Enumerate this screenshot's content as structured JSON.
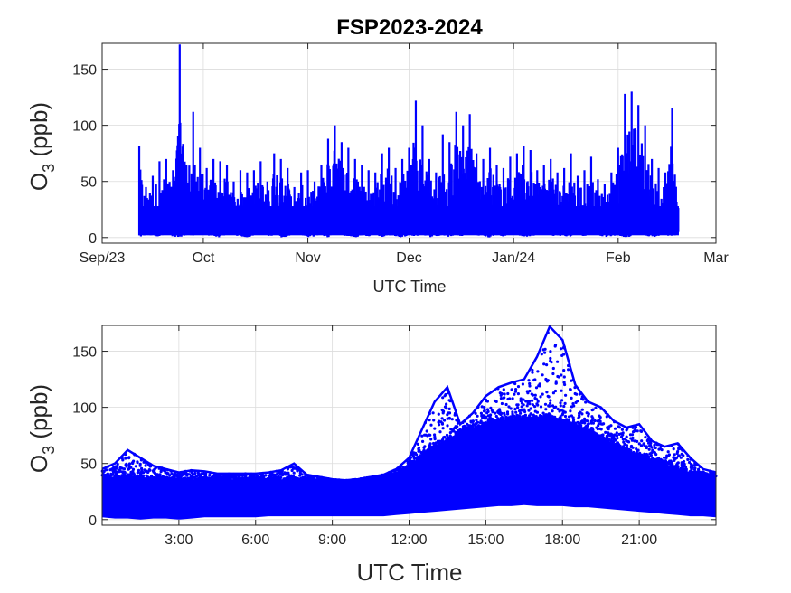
{
  "title": "FSP2023-2024",
  "colors": {
    "series": "#0000ff",
    "axis": "#262626",
    "grid": "#dcdcdc"
  },
  "chart_data": [
    {
      "type": "line",
      "title": "FSP2023-2024",
      "xlabel": "UTC Time",
      "ylabel": {
        "main": "O",
        "sub": "3",
        "unit": " (ppb)"
      },
      "x_type": "date",
      "xlim": [
        "2023-09-01",
        "2024-03-01"
      ],
      "ylim": [
        -5,
        173
      ],
      "yticks": [
        0,
        50,
        100,
        150
      ],
      "xticks": [
        {
          "label": "Sep/23",
          "value": "2023-09-01"
        },
        {
          "label": "Oct",
          "value": "2023-10-01"
        },
        {
          "label": "Nov",
          "value": "2023-11-01"
        },
        {
          "label": "Dec",
          "value": "2023-12-01"
        },
        {
          "label": "Jan/24",
          "value": "2024-01-01"
        },
        {
          "label": "Feb",
          "value": "2024-02-01"
        },
        {
          "label": "Mar",
          "value": "2024-03-01"
        }
      ],
      "grid": true,
      "series": [
        {
          "color": "#0000ff",
          "note": "daily range of ozone (min/max), approximate",
          "x": [
            "2023-09-12",
            "2023-09-14",
            "2023-09-16",
            "2023-09-18",
            "2023-09-20",
            "2023-09-22",
            "2023-09-24",
            "2023-09-26",
            "2023-09-28",
            "2023-09-30",
            "2023-10-02",
            "2023-10-04",
            "2023-10-06",
            "2023-10-08",
            "2023-10-10",
            "2023-10-12",
            "2023-10-14",
            "2023-10-16",
            "2023-10-18",
            "2023-10-20",
            "2023-10-22",
            "2023-10-24",
            "2023-10-26",
            "2023-10-28",
            "2023-10-30",
            "2023-11-01",
            "2023-11-03",
            "2023-11-05",
            "2023-11-07",
            "2023-11-09",
            "2023-11-11",
            "2023-11-13",
            "2023-11-15",
            "2023-11-17",
            "2023-11-19",
            "2023-11-21",
            "2023-11-23",
            "2023-11-25",
            "2023-11-27",
            "2023-11-29",
            "2023-12-01",
            "2023-12-03",
            "2023-12-05",
            "2023-12-07",
            "2023-12-09",
            "2023-12-11",
            "2023-12-13",
            "2023-12-15",
            "2023-12-17",
            "2023-12-19",
            "2023-12-21",
            "2023-12-23",
            "2023-12-25",
            "2023-12-27",
            "2023-12-29",
            "2023-12-31",
            "2024-01-02",
            "2024-01-04",
            "2024-01-06",
            "2024-01-08",
            "2024-01-10",
            "2024-01-12",
            "2024-01-14",
            "2024-01-16",
            "2024-01-18",
            "2024-01-20",
            "2024-01-22",
            "2024-01-24",
            "2024-01-26",
            "2024-01-28",
            "2024-01-30",
            "2024-02-01",
            "2024-02-03",
            "2024-02-05",
            "2024-02-07",
            "2024-02-09",
            "2024-02-11",
            "2024-02-13",
            "2024-02-15",
            "2024-02-17",
            "2024-02-19"
          ],
          "min": [
            0,
            2,
            1,
            0,
            3,
            1,
            0,
            2,
            1,
            4,
            2,
            1,
            0,
            3,
            2,
            1,
            0,
            2,
            3,
            1,
            2,
            0,
            1,
            3,
            2,
            0,
            1,
            2,
            0,
            3,
            2,
            1,
            0,
            2,
            1,
            3,
            0,
            2,
            1,
            0,
            2,
            1,
            3,
            0,
            1,
            2,
            0,
            2,
            1,
            3,
            2,
            1,
            0,
            2,
            1,
            3,
            2,
            0,
            1,
            2,
            3,
            1,
            2,
            0,
            1,
            2,
            1,
            3,
            2,
            0,
            1,
            2,
            0,
            1,
            3,
            2,
            0,
            1,
            2,
            1,
            3
          ],
          "max": [
            82,
            45,
            55,
            68,
            70,
            60,
            172,
            65,
            112,
            80,
            62,
            70,
            68,
            65,
            50,
            60,
            58,
            60,
            68,
            50,
            75,
            70,
            62,
            45,
            58,
            60,
            50,
            65,
            88,
            100,
            85,
            80,
            70,
            65,
            60,
            58,
            75,
            80,
            62,
            70,
            80,
            122,
            100,
            70,
            58,
            92,
            85,
            112,
            100,
            110,
            75,
            70,
            80,
            65,
            62,
            72,
            75,
            82,
            78,
            60,
            65,
            70,
            58,
            62,
            75,
            55,
            60,
            72,
            52,
            48,
            58,
            80,
            128,
            130,
            118,
            100,
            70,
            62,
            58,
            115,
            30
          ]
        }
      ]
    },
    {
      "type": "scatter",
      "xlabel": "UTC Time",
      "ylabel": {
        "main": "O",
        "sub": "3",
        "unit": " (ppb)"
      },
      "xlim": [
        0,
        24
      ],
      "ylim": [
        -5,
        173
      ],
      "yticks": [
        0,
        50,
        100,
        150
      ],
      "xticks": [
        {
          "label": "3:00",
          "value": 3
        },
        {
          "label": "6:00",
          "value": 6
        },
        {
          "label": "9:00",
          "value": 9
        },
        {
          "label": "12:00",
          "value": 12
        },
        {
          "label": "15:00",
          "value": 15
        },
        {
          "label": "18:00",
          "value": 18
        },
        {
          "label": "21:00",
          "value": 21
        }
      ],
      "grid": true,
      "series": [
        {
          "color": "#0000ff",
          "note": "diurnal envelope of ozone (lower/upper), approximate",
          "x": [
            0,
            0.5,
            1,
            1.5,
            2,
            2.5,
            3,
            3.5,
            4,
            4.5,
            5,
            5.5,
            6,
            6.5,
            7,
            7.5,
            8,
            8.5,
            9,
            9.5,
            10,
            10.5,
            11,
            11.5,
            12,
            12.5,
            13,
            13.5,
            14,
            14.5,
            15,
            15.5,
            16,
            16.5,
            17,
            17.5,
            18,
            18.5,
            19,
            19.5,
            20,
            20.5,
            21,
            21.5,
            22,
            22.5,
            23,
            23.5,
            24
          ],
          "low": [
            2,
            1,
            1,
            0,
            1,
            1,
            0,
            1,
            2,
            2,
            2,
            2,
            2,
            3,
            3,
            3,
            3,
            3,
            3,
            3,
            3,
            3,
            3,
            4,
            5,
            6,
            7,
            8,
            9,
            10,
            11,
            12,
            12,
            13,
            12,
            12,
            12,
            11,
            11,
            10,
            9,
            8,
            7,
            6,
            5,
            4,
            3,
            3,
            2
          ],
          "high": [
            45,
            50,
            62,
            55,
            48,
            45,
            42,
            44,
            43,
            41,
            41,
            41,
            41,
            42,
            44,
            50,
            40,
            38,
            36,
            35,
            36,
            38,
            40,
            45,
            55,
            80,
            105,
            118,
            85,
            95,
            110,
            118,
            122,
            125,
            145,
            172,
            160,
            120,
            105,
            100,
            88,
            82,
            85,
            70,
            65,
            68,
            55,
            45,
            42
          ],
          "band_top": [
            38,
            38,
            40,
            38,
            37,
            36,
            36,
            36,
            36,
            36,
            36,
            36,
            36,
            36,
            36,
            36,
            35,
            35,
            34,
            33,
            34,
            35,
            37,
            40,
            48,
            58,
            66,
            72,
            78,
            82,
            86,
            88,
            90,
            92,
            92,
            92,
            90,
            86,
            80,
            74,
            68,
            62,
            58,
            54,
            50,
            46,
            42,
            40,
            38
          ]
        }
      ]
    }
  ]
}
